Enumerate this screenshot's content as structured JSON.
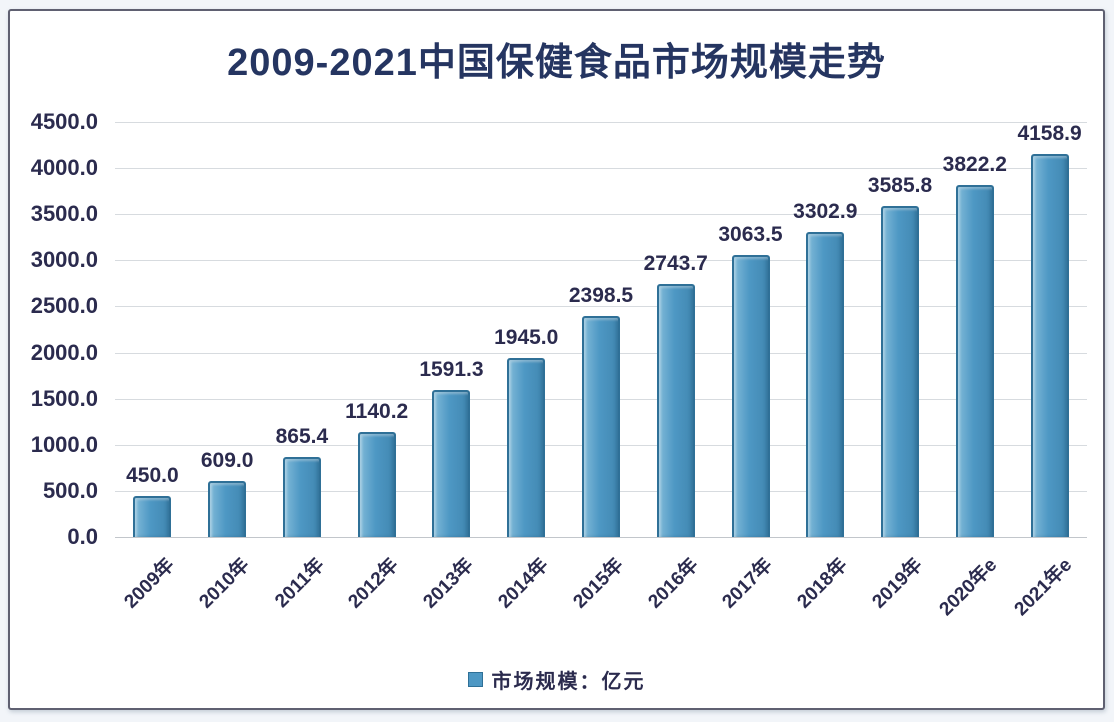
{
  "chart_data": {
    "type": "bar",
    "title": "2009-2021中国保健食品市场规模走势",
    "categories": [
      "2009年",
      "2010年",
      "2011年",
      "2012年",
      "2013年",
      "2014年",
      "2015年",
      "2016年",
      "2017年",
      "2018年",
      "2019年",
      "2020年e",
      "2021年e"
    ],
    "values": [
      450.0,
      609.0,
      865.4,
      1140.2,
      1591.3,
      1945.0,
      2398.5,
      2743.7,
      3063.5,
      3302.9,
      3585.8,
      3822.2,
      4158.9
    ],
    "value_labels": [
      "450.0",
      "609.0",
      "865.4",
      "1140.2",
      "1591.3",
      "1945.0",
      "2398.5",
      "2743.7",
      "3063.5",
      "3302.9",
      "3585.8",
      "3822.2",
      "4158.9"
    ],
    "xlabel": "",
    "ylabel": "",
    "ylim": [
      0,
      4500
    ],
    "ytick_step": 500,
    "ytick_labels": [
      "0.0",
      "500.0",
      "1000.0",
      "1500.0",
      "2000.0",
      "2500.0",
      "3000.0",
      "3500.0",
      "4000.0",
      "4500.0"
    ],
    "grid": true,
    "x_tick_rotation_deg": -45,
    "legend": {
      "label": "市场规模：亿元",
      "position": "bottom-center",
      "swatch": "blue-square"
    },
    "colors": {
      "title": "#253561",
      "text": "#2b2b4e",
      "grid": "#d7dbdf",
      "axis_line": "#c2c6cb",
      "bar_fill": "#4e98c4",
      "bar_fill_light": "#7fb9d8",
      "bar_fill_dark": "#4187b1",
      "bar_border": "#2f7097",
      "frame_border": "#5f6071",
      "page_background": "#f2f5f9",
      "plot_background": "#ffffff"
    }
  }
}
